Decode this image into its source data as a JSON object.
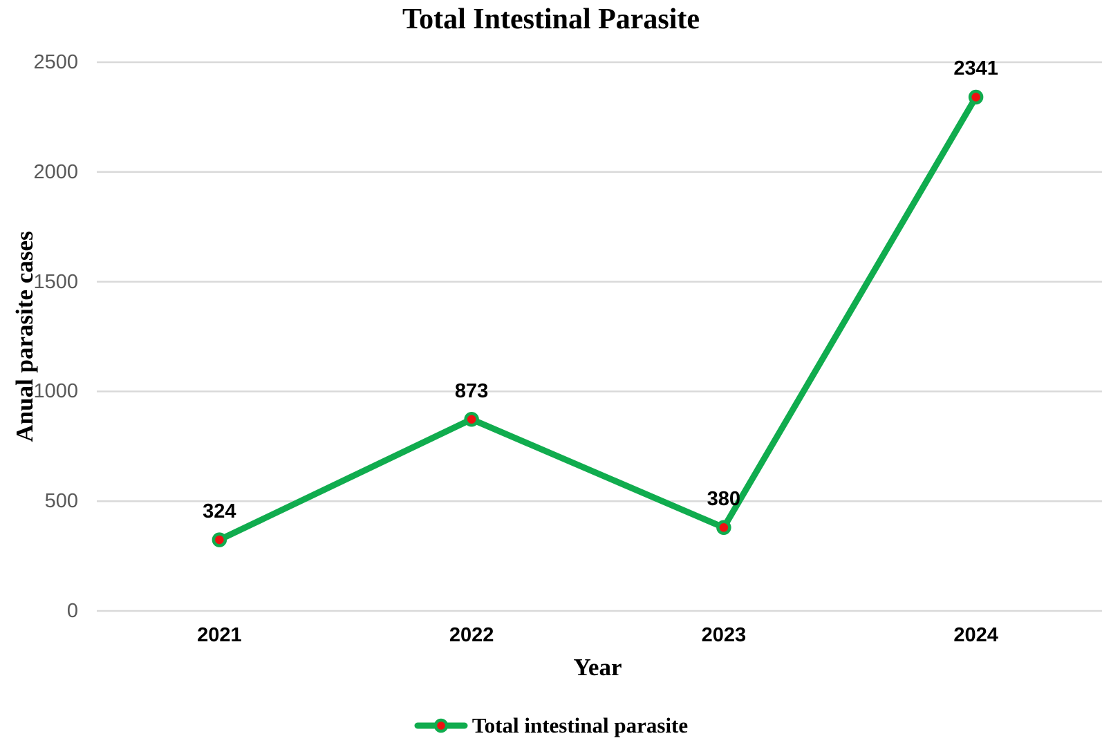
{
  "title": "Total Intestinal Parasite",
  "colors": {
    "line": "#10AC4E",
    "marker_fill": "#EE1111",
    "marker_ring": "#10AC4E",
    "gridline": "#D9D9D9",
    "ytick_text": "#595959",
    "label_text": "#000000"
  },
  "chart_data": {
    "type": "line",
    "title": "Total Intestinal Parasite",
    "categories": [
      "2021",
      "2022",
      "2023",
      "2024"
    ],
    "series": [
      {
        "name": "Total intestinal parasite",
        "values": [
          324,
          873,
          380,
          2341
        ]
      }
    ],
    "data_labels": [
      "324",
      "873",
      "380",
      "2341"
    ],
    "xlabel": "Year",
    "ylabel": "Anual parasite cases",
    "ylim": [
      0,
      2500
    ],
    "yticks": [
      0,
      500,
      1000,
      1500,
      2000,
      2500
    ],
    "grid": true,
    "legend_position": "bottom"
  },
  "legend": {
    "label": "Total intestinal parasite"
  }
}
